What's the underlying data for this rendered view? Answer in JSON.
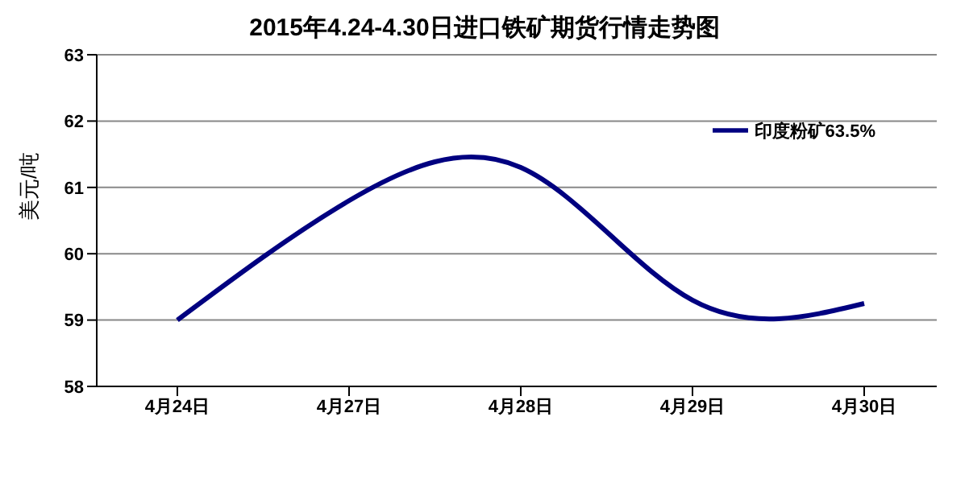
{
  "chart_data": {
    "type": "line",
    "title": "2015年4.24-4.30日进口铁矿期货行情走势图",
    "ylabel": "美元/吨",
    "categories": [
      "4月24日",
      "4月27日",
      "4月28日",
      "4月29日",
      "4月30日"
    ],
    "series": [
      {
        "name": "印度粉矿63.5%",
        "color": "#000080",
        "values": [
          59.0,
          60.8,
          61.3,
          59.3,
          59.25
        ]
      }
    ],
    "ylim": [
      58,
      63
    ],
    "yticks": [
      58,
      59,
      60,
      61,
      62,
      63
    ],
    "grid": "y",
    "legend": "top right",
    "marker": "none",
    "line_style": "solid"
  }
}
